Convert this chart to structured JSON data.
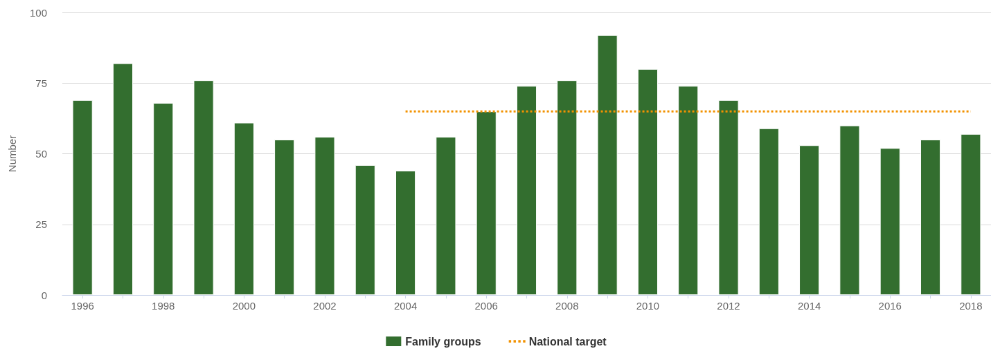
{
  "chart_data": {
    "type": "bar",
    "ylabel": "Number",
    "categories": [
      "1996",
      null,
      "1998",
      null,
      "2000",
      null,
      "2002",
      null,
      "2004",
      null,
      "2006",
      null,
      "2008",
      null,
      "2010",
      null,
      "2012",
      null,
      "2014",
      null,
      "2016",
      null,
      "2018"
    ],
    "series": [
      {
        "name": "Family groups",
        "color": "#336e2f",
        "values": [
          69,
          82,
          68,
          76,
          61,
          55,
          56,
          46,
          44,
          56,
          65,
          74,
          76,
          92,
          80,
          74,
          69,
          59,
          53,
          60,
          52,
          55,
          57
        ]
      },
      {
        "name": "National target",
        "type": "line",
        "color": "#f29200",
        "line_style": "dotted",
        "marker": "none",
        "values": [
          null,
          null,
          null,
          null,
          null,
          null,
          null,
          null,
          65,
          65,
          65,
          65,
          65,
          65,
          65,
          65,
          65,
          65,
          65,
          65,
          65,
          65,
          65
        ]
      }
    ],
    "ylim": [
      0,
      100
    ],
    "yticks": [
      0,
      25,
      50,
      75,
      100
    ],
    "grid": "y",
    "legend": "bottom"
  }
}
